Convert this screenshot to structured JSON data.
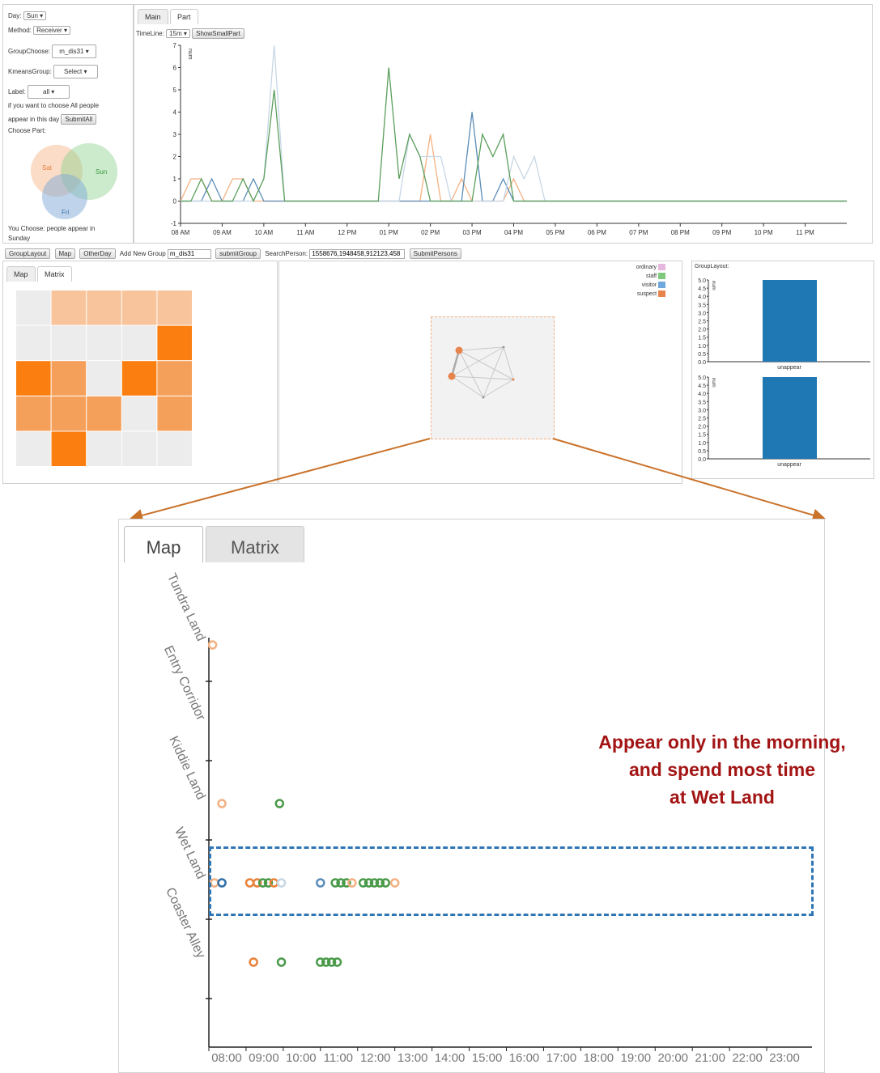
{
  "controls": {
    "day_label": "Day:",
    "day_value": "Sun",
    "method_label": "Method:",
    "method_value": "Receiver",
    "groupchoose_label": "GroupChoose:",
    "groupchoose_value": "m_dis31",
    "kmeans_label": "KmeansGroup:",
    "kmeans_value": "Select",
    "label_label": "Label:",
    "label_value": "all",
    "all_people_text_1": "if you want to choose All people",
    "all_people_text_2": "appear in this day",
    "submitall_label": "SubmitAll",
    "choose_part_label": "Choose Part:",
    "venn": {
      "sat": "Sat",
      "sun": "Sun",
      "fri": "Fri"
    },
    "you_choose_1": "You Choose: people appear in",
    "you_choose_2": "Sunday"
  },
  "timeline_panel": {
    "tabs": [
      "Main",
      "Part"
    ],
    "timeline_label": "TimeLine:",
    "timeline_value": "15m",
    "show_button": "ShowSmallPart"
  },
  "toolbar": {
    "grouplayout": "GroupLayout",
    "map": "Map",
    "otherday": "OtherDay",
    "add_group_label": "Add New Group",
    "add_group_value": "m_dis31",
    "submit_group": "submitGroup",
    "search_label": "SearchPerson:",
    "search_value": "1558676,1948458,912123,458",
    "submit_persons": "SubmitPersons"
  },
  "matrix_panel": {
    "tabs": [
      "Map",
      "Matrix"
    ]
  },
  "legend": [
    {
      "label": "ordinary",
      "color": "#e7b8df"
    },
    {
      "label": "staff",
      "color": "#7fc97f"
    },
    {
      "label": "visitor",
      "color": "#6fa8dc"
    },
    {
      "label": "suspect",
      "color": "#e6844c"
    }
  ],
  "group_layout": {
    "title": "GroupLayout:",
    "unit": "num",
    "bar_label": "unappear"
  },
  "zoom_panel": {
    "tabs": [
      "Map",
      "Matrix"
    ]
  },
  "annotation": {
    "line1": "Appear only in the morning,",
    "line2": "and spend most time",
    "line3": "at Wet Land"
  },
  "chart_data": [
    {
      "type": "line",
      "ylabel": "num",
      "ylim": [
        -1,
        7
      ],
      "yticks": [
        -1,
        0,
        1,
        2,
        3,
        4,
        5,
        6,
        7
      ],
      "xticks": [
        "08 AM",
        "09 AM",
        "10 AM",
        "11 AM",
        "12 PM",
        "01 PM",
        "02 PM",
        "03 PM",
        "04 PM",
        "05 PM",
        "06 PM",
        "07 PM",
        "08 PM",
        "09 PM",
        "10 PM",
        "11 PM"
      ],
      "x_start_hour": 8,
      "x_step_hours": 0.25,
      "series": [
        {
          "color": "#f4b183",
          "values": [
            0,
            1,
            1,
            0,
            0,
            1,
            1,
            0,
            0,
            0,
            0,
            0,
            0,
            0,
            0,
            0,
            0,
            0,
            0,
            0,
            0,
            0,
            0,
            0,
            3,
            0,
            0,
            1,
            0,
            0,
            0,
            0,
            1,
            0,
            0,
            0,
            0,
            0,
            0,
            0,
            0,
            0,
            0,
            0,
            0,
            0,
            0,
            0,
            0,
            0,
            0,
            0,
            0,
            0,
            0,
            0,
            0,
            0,
            0,
            0,
            0,
            0,
            0,
            0,
            0
          ]
        },
        {
          "color": "#5b8db8",
          "values": [
            0,
            0,
            0,
            1,
            0,
            0,
            0,
            1,
            0,
            0,
            0,
            0,
            0,
            0,
            0,
            0,
            0,
            0,
            0,
            0,
            0,
            0,
            0,
            0,
            0,
            0,
            0,
            0,
            4,
            0,
            0,
            1,
            0,
            0,
            0,
            0,
            0,
            0,
            0,
            0,
            0,
            0,
            0,
            0,
            0,
            0,
            0,
            0,
            0,
            0,
            0,
            0,
            0,
            0,
            0,
            0,
            0,
            0,
            0,
            0,
            0,
            0,
            0,
            0,
            0
          ]
        },
        {
          "color": "#c7d7e6",
          "values": [
            0,
            0,
            0,
            0,
            0,
            0,
            0,
            0,
            1,
            7,
            0,
            0,
            0,
            0,
            0,
            0,
            0,
            0,
            0,
            0,
            0,
            0,
            3,
            2,
            2,
            2,
            0,
            0,
            0,
            0,
            0,
            0,
            2,
            1,
            2,
            0,
            0,
            0,
            0,
            0,
            0,
            0,
            0,
            0,
            0,
            0,
            0,
            0,
            0,
            0,
            0,
            0,
            0,
            0,
            0,
            0,
            0,
            0,
            0,
            0,
            0,
            0,
            0,
            0,
            0
          ]
        },
        {
          "color": "#5a9e5a",
          "values": [
            0,
            0,
            1,
            0,
            0,
            0,
            1,
            0,
            1,
            5,
            0,
            0,
            0,
            0,
            0,
            0,
            0,
            0,
            0,
            0,
            6,
            1,
            3,
            2,
            0,
            0,
            0,
            0,
            0,
            3,
            2,
            3,
            0,
            0,
            0,
            0,
            0,
            0,
            0,
            0,
            0,
            0,
            0,
            0,
            0,
            0,
            0,
            0,
            0,
            0,
            0,
            0,
            0,
            0,
            0,
            0,
            0,
            0,
            0,
            0,
            0,
            0,
            0,
            0,
            0
          ]
        }
      ]
    },
    {
      "type": "heatmap",
      "rows": 5,
      "cols": 5,
      "values": [
        [
          0,
          1,
          1,
          1,
          1
        ],
        [
          0,
          0,
          0,
          0,
          3
        ],
        [
          3,
          2,
          0,
          3,
          2
        ],
        [
          2,
          2,
          2,
          0,
          2
        ],
        [
          0,
          3,
          0,
          0,
          0
        ]
      ]
    },
    {
      "type": "bar",
      "categories": [
        "unappear"
      ],
      "values": [
        5
      ],
      "ylim": [
        0,
        5
      ],
      "ylabel": "num",
      "yticks": [
        0,
        0.5,
        1,
        1.5,
        2,
        2.5,
        3,
        3.5,
        4,
        4.5,
        5
      ]
    },
    {
      "type": "bar",
      "categories": [
        "unappear"
      ],
      "values": [
        5
      ],
      "ylim": [
        0,
        5
      ],
      "ylabel": "num",
      "yticks": [
        0,
        0.5,
        1,
        1.5,
        2,
        2.5,
        3,
        3.5,
        4,
        4.5,
        5
      ]
    },
    {
      "type": "scatter",
      "categories": [
        "Tundra Land",
        "Entry Corridor",
        "Kiddie Land",
        "Wet Land",
        "Coaster Alley"
      ],
      "xticks": [
        "08:00",
        "09:00",
        "10:00",
        "11:00",
        "12:00",
        "13:00",
        "14:00",
        "15:00",
        "16:00",
        "17:00",
        "18:00",
        "19:00",
        "20:00",
        "21:00",
        "22:00",
        "23:00"
      ],
      "xlim": [
        8,
        24
      ],
      "points": [
        {
          "x": 8.1,
          "cat": "Tundra Land",
          "color": "#f4b183"
        },
        {
          "x": 8.35,
          "cat": "Kiddie Land",
          "color": "#f4b183"
        },
        {
          "x": 9.9,
          "cat": "Kiddie Land",
          "color": "#4a9a4a"
        },
        {
          "x": 8.15,
          "cat": "Wet Land",
          "color": "#f4b183"
        },
        {
          "x": 8.35,
          "cat": "Wet Land",
          "color": "#2e6fa8"
        },
        {
          "x": 9.1,
          "cat": "Wet Land",
          "color": "#e8823a"
        },
        {
          "x": 9.3,
          "cat": "Wet Land",
          "color": "#e8823a"
        },
        {
          "x": 9.45,
          "cat": "Wet Land",
          "color": "#4a9a4a"
        },
        {
          "x": 9.6,
          "cat": "Wet Land",
          "color": "#4a9a4a"
        },
        {
          "x": 9.75,
          "cat": "Wet Land",
          "color": "#e8823a"
        },
        {
          "x": 9.95,
          "cat": "Wet Land",
          "color": "#c7d7e6"
        },
        {
          "x": 11.0,
          "cat": "Wet Land",
          "color": "#5b8db8"
        },
        {
          "x": 11.4,
          "cat": "Wet Land",
          "color": "#4a9a4a"
        },
        {
          "x": 11.55,
          "cat": "Wet Land",
          "color": "#4a9a4a"
        },
        {
          "x": 11.7,
          "cat": "Wet Land",
          "color": "#4a9a4a"
        },
        {
          "x": 11.85,
          "cat": "Wet Land",
          "color": "#f4b183"
        },
        {
          "x": 12.15,
          "cat": "Wet Land",
          "color": "#4a9a4a"
        },
        {
          "x": 12.3,
          "cat": "Wet Land",
          "color": "#4a9a4a"
        },
        {
          "x": 12.45,
          "cat": "Wet Land",
          "color": "#4a9a4a"
        },
        {
          "x": 12.6,
          "cat": "Wet Land",
          "color": "#4a9a4a"
        },
        {
          "x": 12.75,
          "cat": "Wet Land",
          "color": "#4a9a4a"
        },
        {
          "x": 13.0,
          "cat": "Wet Land",
          "color": "#f4b183"
        },
        {
          "x": 9.2,
          "cat": "Coaster Alley",
          "color": "#e8823a"
        },
        {
          "x": 9.95,
          "cat": "Coaster Alley",
          "color": "#4a9a4a"
        },
        {
          "x": 11.0,
          "cat": "Coaster Alley",
          "color": "#4a9a4a"
        },
        {
          "x": 11.15,
          "cat": "Coaster Alley",
          "color": "#4a9a4a"
        },
        {
          "x": 11.3,
          "cat": "Coaster Alley",
          "color": "#4a9a4a"
        },
        {
          "x": 11.45,
          "cat": "Coaster Alley",
          "color": "#4a9a4a"
        }
      ]
    }
  ]
}
